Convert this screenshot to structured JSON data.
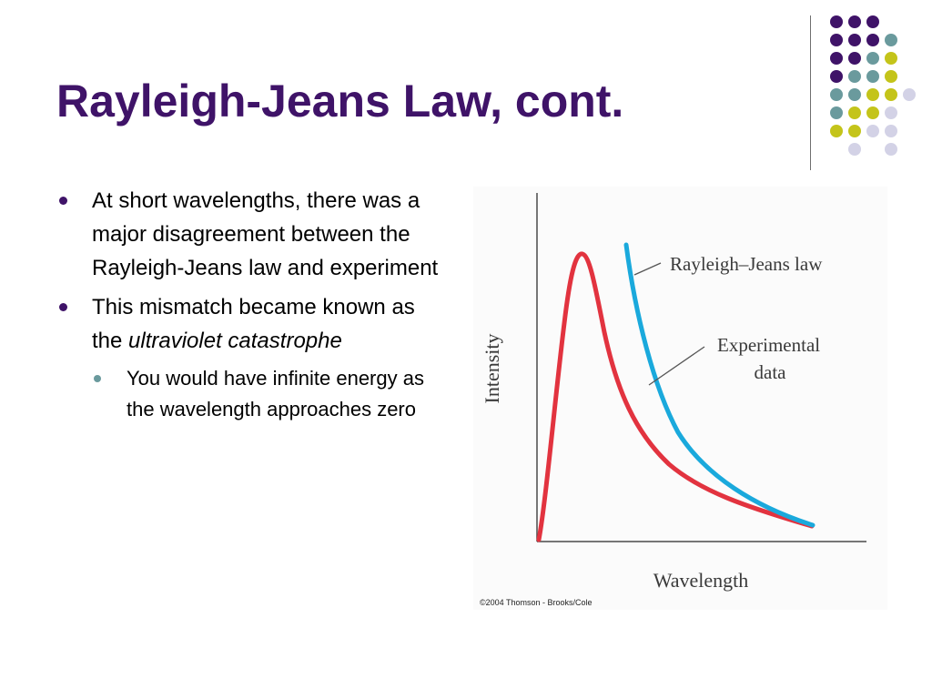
{
  "slide": {
    "title": "Rayleigh-Jeans Law, cont."
  },
  "bullets": [
    {
      "text": "At short wavelengths, there was a major disagreement between the Rayleigh-Jeans law and experiment"
    },
    {
      "text_before": "This mismatch became known as the ",
      "text_emphasis": "ultraviolet catastrophe",
      "sub_bullets": [
        {
          "text": "You would have infinite energy as the wavelength approaches zero"
        }
      ]
    }
  ],
  "figure": {
    "y_axis_label": "Intensity",
    "x_axis_label": "Wavelength",
    "curve_labels": {
      "rayleigh_jeans": "Rayleigh–Jeans law",
      "experimental_line1": "Experimental",
      "experimental_line2": "data"
    },
    "credit": "©2004 Thomson - Brooks/Cole"
  },
  "colors": {
    "title": "#3f1368",
    "bullet_marker": "#3f1368",
    "sub_bullet_marker": "#6a9a9d",
    "rayleigh_jeans_curve": "#1aa9dc",
    "experimental_curve": "#e2333f",
    "dot_purple": "#3f1368",
    "dot_teal": "#6a9a9d",
    "dot_yellow": "#c4c41a",
    "dot_lavender": "#d3d2e6"
  },
  "decoration": {
    "dot_grid_colors": [
      [
        "purple",
        "purple",
        "purple",
        "",
        ""
      ],
      [
        "purple",
        "purple",
        "purple",
        "teal",
        ""
      ],
      [
        "purple",
        "purple",
        "teal",
        "yellow",
        ""
      ],
      [
        "purple",
        "teal",
        "teal",
        "yellow",
        ""
      ],
      [
        "teal",
        "teal",
        "yellow",
        "yellow",
        "lavender"
      ],
      [
        "teal",
        "yellow",
        "yellow",
        "lavender",
        ""
      ],
      [
        "yellow",
        "yellow",
        "lavender",
        "lavender",
        ""
      ],
      [
        "",
        "lavender",
        "",
        "lavender",
        ""
      ]
    ]
  }
}
